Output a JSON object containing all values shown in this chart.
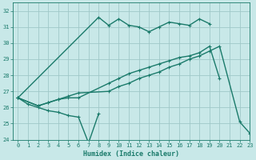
{
  "xlabel": "Humidex (Indice chaleur)",
  "bg_color": "#c8e8e8",
  "grid_color": "#a0c8c8",
  "line_color": "#1a7a6a",
  "xlim": [
    -0.5,
    23
  ],
  "ylim": [
    24,
    32.5
  ],
  "yticks": [
    24,
    25,
    26,
    27,
    28,
    29,
    30,
    31,
    32
  ],
  "xticks": [
    0,
    1,
    2,
    3,
    4,
    5,
    6,
    7,
    8,
    9,
    10,
    11,
    12,
    13,
    14,
    15,
    16,
    17,
    18,
    19,
    20,
    21,
    22,
    23
  ],
  "series": [
    [
      0,
      26.6
    ],
    [
      1,
      26.2
    ],
    [
      2,
      26.0
    ],
    [
      3,
      25.8
    ],
    [
      4,
      25.7
    ],
    [
      5,
      25.5
    ],
    [
      6,
      25.4
    ],
    [
      7,
      23.8
    ],
    [
      8,
      25.6
    ]
  ],
  "series2": [
    [
      0,
      26.6
    ],
    [
      8,
      31.6
    ],
    [
      9,
      31.1
    ],
    [
      10,
      31.5
    ],
    [
      11,
      31.1
    ],
    [
      12,
      31.0
    ],
    [
      13,
      30.7
    ],
    [
      14,
      31.0
    ],
    [
      15,
      31.3
    ],
    [
      16,
      31.2
    ],
    [
      17,
      31.1
    ],
    [
      18,
      31.5
    ],
    [
      19,
      31.2
    ]
  ],
  "series3": [
    [
      0,
      26.6
    ],
    [
      2,
      26.1
    ],
    [
      3,
      26.3
    ],
    [
      4,
      26.5
    ],
    [
      5,
      26.6
    ],
    [
      6,
      26.6
    ],
    [
      9,
      27.5
    ],
    [
      10,
      27.8
    ],
    [
      11,
      28.1
    ],
    [
      12,
      28.3
    ],
    [
      13,
      28.5
    ],
    [
      14,
      28.7
    ],
    [
      15,
      28.9
    ],
    [
      16,
      29.1
    ],
    [
      17,
      29.2
    ],
    [
      18,
      29.4
    ],
    [
      19,
      29.8
    ],
    [
      20,
      27.8
    ]
  ],
  "series4": [
    [
      0,
      26.6
    ],
    [
      2,
      26.1
    ],
    [
      3,
      26.3
    ],
    [
      4,
      26.5
    ],
    [
      5,
      26.7
    ],
    [
      6,
      26.9
    ],
    [
      9,
      27.0
    ],
    [
      10,
      27.3
    ],
    [
      11,
      27.5
    ],
    [
      12,
      27.8
    ],
    [
      13,
      28.0
    ],
    [
      14,
      28.2
    ],
    [
      15,
      28.5
    ],
    [
      16,
      28.7
    ],
    [
      17,
      29.0
    ],
    [
      18,
      29.2
    ],
    [
      19,
      29.5
    ],
    [
      20,
      29.8
    ],
    [
      22,
      25.1
    ],
    [
      23,
      24.4
    ]
  ]
}
